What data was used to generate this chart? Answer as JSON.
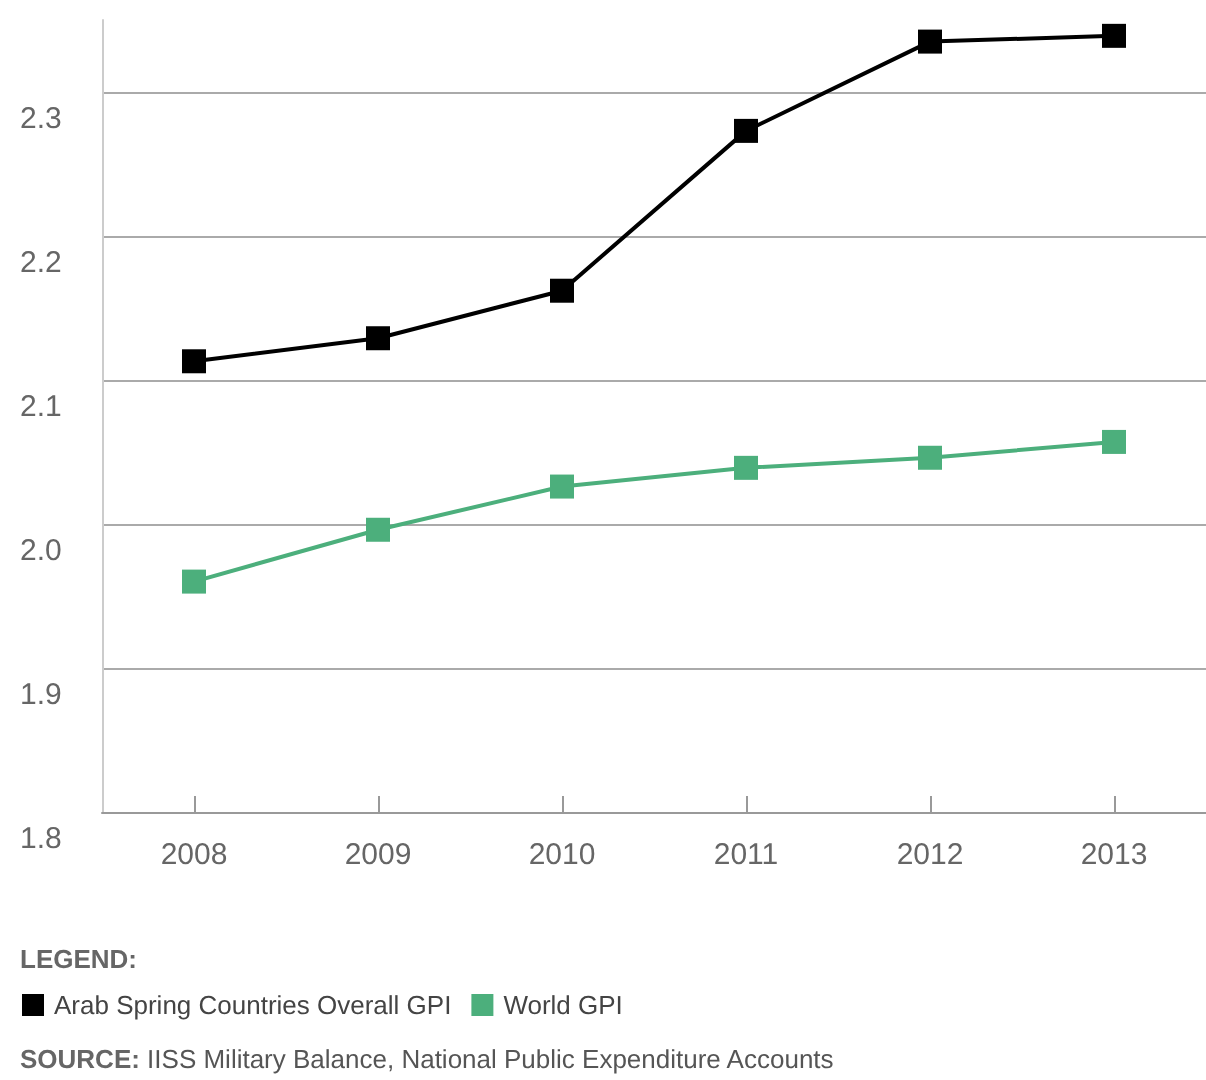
{
  "chart_data": {
    "type": "line",
    "categories": [
      "2008",
      "2009",
      "2010",
      "2011",
      "2012",
      "2013"
    ],
    "series": [
      {
        "name": "Arab Spring Countries Overall GPI",
        "color": "#000000",
        "values": [
          2.113,
          2.129,
          2.162,
          2.273,
          2.335,
          2.339
        ]
      },
      {
        "name": "World GPI",
        "color": "#4caf7c",
        "values": [
          1.96,
          1.996,
          2.026,
          2.039,
          2.046,
          2.057
        ]
      }
    ],
    "ylim": [
      1.8,
      2.35
    ],
    "yticks": [
      1.8,
      1.9,
      {
        "value": 2,
        "label": "2.0"
      },
      2.1,
      2.2,
      2.3
    ],
    "grid": "y",
    "legend": "bottom left",
    "legend_title": "LEGEND:",
    "marker": "square",
    "line_style": "solid",
    "annotations": [
      "SOURCE: IISS Military Balance, National Public Expenditure Accounts"
    ]
  }
}
